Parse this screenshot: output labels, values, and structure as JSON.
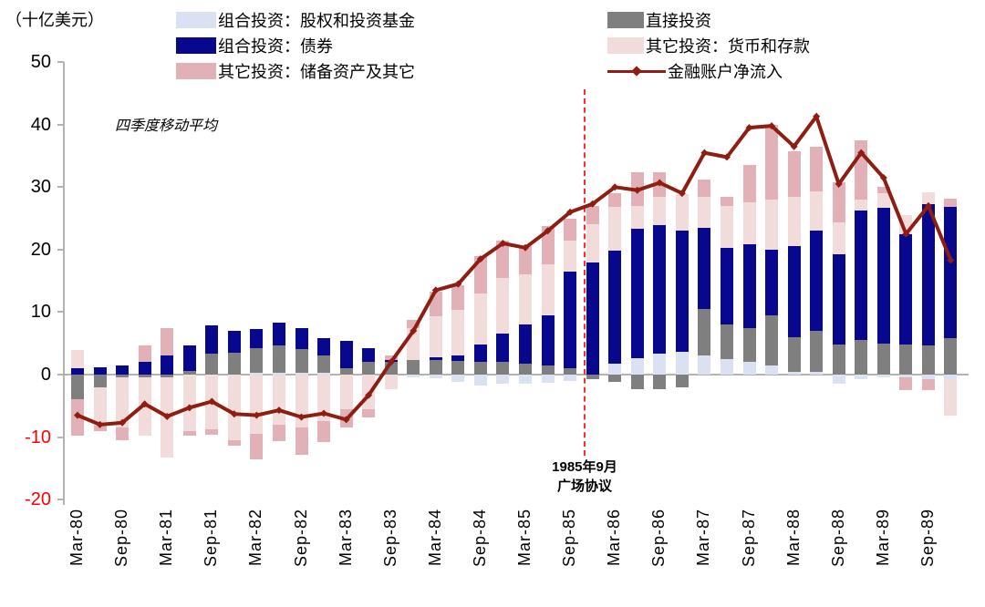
{
  "unit_label": "（十亿美元）",
  "annotations": {
    "moving_average": "四季度移动平均",
    "plaza_line1": "1985年9月",
    "plaza_line2": "广场协议"
  },
  "legend": {
    "col1": [
      {
        "label": "组合投资：股权和投资基金",
        "color": "#d9e1f2",
        "marker": "swatch"
      },
      {
        "label": "组合投资：债券",
        "color": "#08088e",
        "marker": "swatch"
      },
      {
        "label": "其它投资：储备资产及其它",
        "color": "#e2b1b7",
        "marker": "swatch"
      }
    ],
    "col2": [
      {
        "label": "直接投资",
        "color": "#7f7f7f",
        "marker": "swatch"
      },
      {
        "label": "其它投资：货币和存款",
        "color": "#f2dcdb",
        "marker": "swatch"
      },
      {
        "label": "金融账户净流入",
        "color": "#8e1d12",
        "marker": "line"
      }
    ]
  },
  "chart_data": {
    "type": "bar",
    "stacked": true,
    "title": "",
    "xlabel": "",
    "ylabel": "（十亿美元）",
    "ylim": [
      -20,
      50
    ],
    "grid": false,
    "legend_position": "top",
    "y_ticks": [
      50,
      40,
      30,
      20,
      10,
      0,
      -10,
      -20
    ],
    "y_tick_negative_color": "#fe0000",
    "event_line": {
      "after_quarter": "Sep-85",
      "label": "1985年9月 广场协议",
      "color": "#fb2e2e"
    },
    "quarters": [
      "Mar-80",
      "Jun-80",
      "Sep-80",
      "Dec-80",
      "Mar-81",
      "Jun-81",
      "Sep-81",
      "Dec-81",
      "Mar-82",
      "Jun-82",
      "Sep-82",
      "Dec-82",
      "Mar-83",
      "Jun-83",
      "Sep-83",
      "Dec-83",
      "Mar-84",
      "Jun-84",
      "Sep-84",
      "Dec-84",
      "Mar-85",
      "Jun-85",
      "Sep-85",
      "Dec-85",
      "Mar-86",
      "Jun-86",
      "Sep-86",
      "Dec-86",
      "Mar-87",
      "Jun-87",
      "Sep-87",
      "Dec-87",
      "Mar-88",
      "Jun-88",
      "Sep-88",
      "Dec-88",
      "Mar-89",
      "Jun-89",
      "Sep-89",
      "Dec-89"
    ],
    "x_tick_labels": [
      "Mar-80",
      "Sep-80",
      "Mar-81",
      "Sep-81",
      "Mar-82",
      "Sep-82",
      "Mar-83",
      "Sep-83",
      "Mar-84",
      "Sep-84",
      "Mar-85",
      "Sep-85",
      "Mar-86",
      "Sep-86",
      "Mar-87",
      "Sep-87",
      "Mar-88",
      "Sep-88",
      "Mar-89",
      "Sep-89"
    ],
    "series": [
      {
        "id": "equity",
        "name": "组合投资：股权和投资基金",
        "color": "#d9e1f2",
        "values": [
          0,
          0,
          0,
          0,
          0,
          0,
          0,
          0,
          0.3,
          0.3,
          0.3,
          0.3,
          0,
          0,
          0,
          -0.5,
          -0.6,
          -1.2,
          -1.8,
          -1.5,
          -1.5,
          -1.3,
          -1,
          0,
          1.7,
          2.6,
          3.4,
          3.7,
          3,
          2.5,
          2,
          1.5,
          0.5,
          0.5,
          -1.5,
          -0.8,
          -0.5,
          -0.5,
          -0.8,
          -0.7
        ]
      },
      {
        "id": "direct",
        "name": "直接投资",
        "color": "#7f7f7f",
        "values": [
          -4,
          -2.1,
          -0.5,
          -0.5,
          -0.5,
          0.6,
          3.3,
          3.5,
          4,
          4.3,
          3.8,
          2.8,
          1,
          2,
          2,
          2.3,
          2.3,
          2.2,
          2,
          2,
          1.8,
          1.5,
          1,
          -0.8,
          -1.1,
          -2.3,
          -2.4,
          -2,
          7.5,
          5.5,
          5.5,
          8,
          5.5,
          6.5,
          4.8,
          5.5,
          5,
          4.8,
          4.7,
          5.8
        ]
      },
      {
        "id": "bonds",
        "name": "组合投资：债券",
        "color": "#08088e",
        "values": [
          1,
          1.1,
          1.5,
          2,
          3,
          4,
          4.6,
          3.5,
          3,
          3.7,
          3.4,
          2.7,
          4.4,
          2.2,
          0.3,
          0,
          0.5,
          0.8,
          2.8,
          4.5,
          6.2,
          8,
          15.5,
          18,
          18.2,
          20.7,
          20.5,
          19.4,
          13,
          12.3,
          13.3,
          10.5,
          14.5,
          16,
          14.5,
          20.8,
          21.7,
          17.7,
          22.5,
          21
        ]
      },
      {
        "id": "deposits",
        "name": "其它投资：货币和存款",
        "color": "#f2dcdb",
        "values": [
          2.9,
          -6,
          -8,
          -9.3,
          -12.8,
          -9,
          -8.8,
          -10.5,
          -9.5,
          -8,
          -8.5,
          -7.5,
          -5.5,
          -5.5,
          -2.3,
          5.1,
          6.5,
          7.3,
          8.2,
          9,
          8,
          8.2,
          5,
          6,
          6.9,
          3.7,
          4.6,
          5.8,
          5,
          6.7,
          6.7,
          8,
          8,
          6.3,
          5,
          1.7,
          2.3,
          3,
          1.9,
          -5.9
        ]
      },
      {
        "id": "reserve",
        "name": "其它投资：储备资产及其它",
        "color": "#e2b1b7",
        "values": [
          -5.7,
          -1,
          -2,
          2.7,
          4.5,
          -0.8,
          -0.8,
          -0.9,
          -4,
          -2.6,
          -4.3,
          -3.3,
          -3,
          -1.3,
          0.7,
          1.4,
          4,
          4,
          6,
          5.9,
          4.5,
          6,
          3.5,
          3,
          2.2,
          5.4,
          3.9,
          0,
          2.7,
          1.5,
          6,
          12,
          7.3,
          7.2,
          6.4,
          9.5,
          1,
          -2,
          -1.7,
          1.4
        ]
      }
    ],
    "line_series": {
      "id": "net_inflow",
      "name": "金融账户净流入",
      "color": "#8e1d12",
      "marker": "diamond",
      "values": [
        -6.5,
        -8,
        -7.7,
        -4.7,
        -6.7,
        -5.3,
        -4.3,
        -6.3,
        -6.5,
        -5.7,
        -6.8,
        -6.2,
        -7.2,
        -3.3,
        2,
        7,
        13.5,
        14.5,
        18.5,
        21,
        20.3,
        23,
        26,
        27.3,
        30,
        29.5,
        30.7,
        29,
        35.5,
        34.8,
        39.5,
        39.8,
        36.5,
        41.3,
        30.5,
        35.5,
        31.5,
        22.5,
        27,
        18.3
      ]
    }
  }
}
